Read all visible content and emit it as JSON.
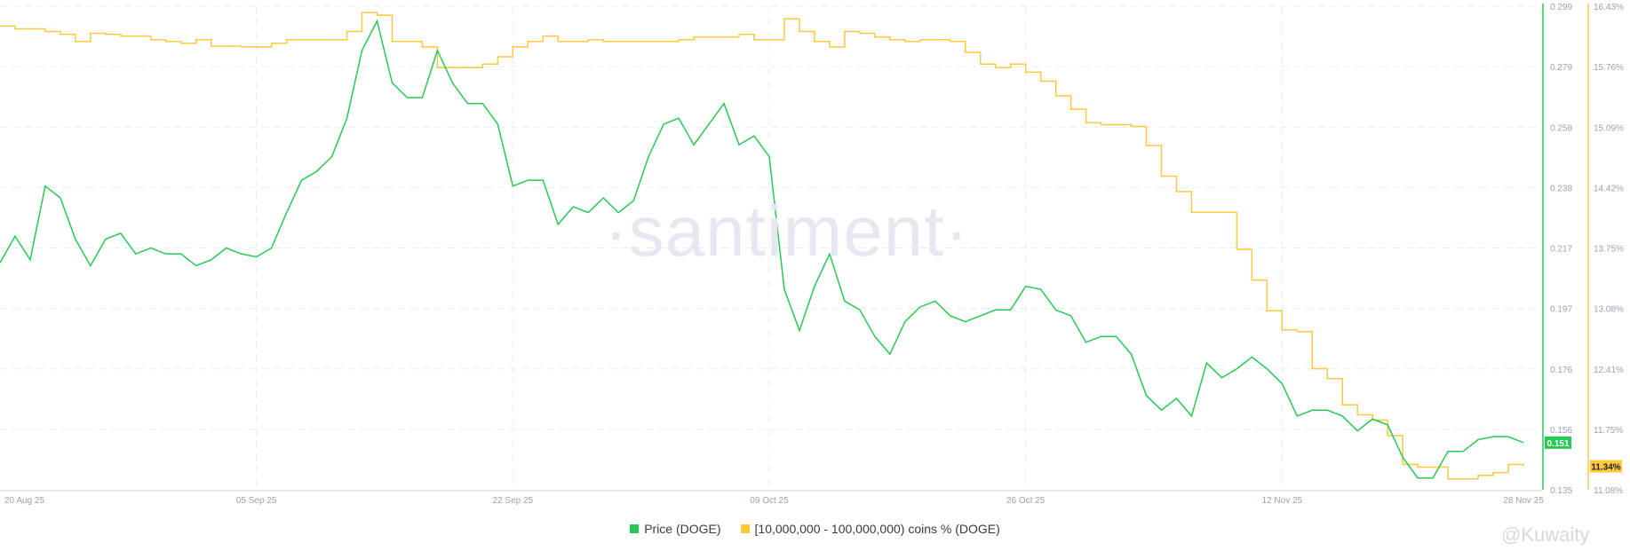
{
  "watermark": "·santiment·",
  "credit": "@Kuwaity",
  "chart_data": {
    "type": "line",
    "x": [
      "2025-08-19",
      "2025-08-20",
      "2025-08-21",
      "2025-08-22",
      "2025-08-23",
      "2025-08-24",
      "2025-08-25",
      "2025-08-26",
      "2025-08-27",
      "2025-08-28",
      "2025-08-29",
      "2025-08-30",
      "2025-08-31",
      "2025-09-01",
      "2025-09-02",
      "2025-09-03",
      "2025-09-04",
      "2025-09-05",
      "2025-09-06",
      "2025-09-07",
      "2025-09-08",
      "2025-09-09",
      "2025-09-10",
      "2025-09-11",
      "2025-09-12",
      "2025-09-13",
      "2025-09-14",
      "2025-09-15",
      "2025-09-16",
      "2025-09-17",
      "2025-09-18",
      "2025-09-19",
      "2025-09-20",
      "2025-09-21",
      "2025-09-22",
      "2025-09-23",
      "2025-09-24",
      "2025-09-25",
      "2025-09-26",
      "2025-09-27",
      "2025-09-28",
      "2025-09-29",
      "2025-09-30",
      "2025-10-01",
      "2025-10-02",
      "2025-10-03",
      "2025-10-04",
      "2025-10-05",
      "2025-10-06",
      "2025-10-07",
      "2025-10-08",
      "2025-10-09",
      "2025-10-10",
      "2025-10-11",
      "2025-10-12",
      "2025-10-13",
      "2025-10-14",
      "2025-10-15",
      "2025-10-16",
      "2025-10-17",
      "2025-10-18",
      "2025-10-19",
      "2025-10-20",
      "2025-10-21",
      "2025-10-22",
      "2025-10-23",
      "2025-10-24",
      "2025-10-25",
      "2025-10-26",
      "2025-10-27",
      "2025-10-28",
      "2025-10-29",
      "2025-10-30",
      "2025-10-31",
      "2025-11-01",
      "2025-11-02",
      "2025-11-03",
      "2025-11-04",
      "2025-11-05",
      "2025-11-06",
      "2025-11-07",
      "2025-11-08",
      "2025-11-09",
      "2025-11-10",
      "2025-11-11",
      "2025-11-12",
      "2025-11-13",
      "2025-11-14",
      "2025-11-15",
      "2025-11-16",
      "2025-11-17",
      "2025-11-18",
      "2025-11-19",
      "2025-11-20",
      "2025-11-21",
      "2025-11-22",
      "2025-11-23",
      "2025-11-24",
      "2025-11-25",
      "2025-11-26",
      "2025-11-27",
      "2025-11-28"
    ],
    "x_ticks": [
      "20 Aug 25",
      "05 Sep 25",
      "22 Sep 25",
      "09 Oct 25",
      "26 Oct 25",
      "12 Nov 25",
      "28 Nov 25"
    ],
    "x_tick_dates": [
      "2025-08-20",
      "2025-09-05",
      "2025-09-22",
      "2025-10-09",
      "2025-10-26",
      "2025-11-12",
      "2025-11-28"
    ],
    "series": [
      {
        "name": "Price (DOGE)",
        "axis": "right-1",
        "color": "#26c953",
        "last_value_label": "0.151",
        "values": [
          0.212,
          0.221,
          0.213,
          0.238,
          0.234,
          0.22,
          0.211,
          0.22,
          0.222,
          0.215,
          0.217,
          0.215,
          0.215,
          0.211,
          0.213,
          0.217,
          0.215,
          0.214,
          0.217,
          0.229,
          0.24,
          0.243,
          0.248,
          0.261,
          0.284,
          0.294,
          0.273,
          0.268,
          0.268,
          0.284,
          0.273,
          0.266,
          0.266,
          0.259,
          0.238,
          0.24,
          0.24,
          0.225,
          0.231,
          0.229,
          0.234,
          0.229,
          0.233,
          0.248,
          0.259,
          0.261,
          0.252,
          0.259,
          0.266,
          0.252,
          0.255,
          0.248,
          0.203,
          0.189,
          0.204,
          0.215,
          0.199,
          0.196,
          0.187,
          0.181,
          0.192,
          0.197,
          0.199,
          0.194,
          0.192,
          0.194,
          0.196,
          0.196,
          0.204,
          0.203,
          0.196,
          0.194,
          0.185,
          0.187,
          0.187,
          0.181,
          0.167,
          0.162,
          0.166,
          0.16,
          0.178,
          0.173,
          0.176,
          0.18,
          0.176,
          0.171,
          0.16,
          0.162,
          0.162,
          0.16,
          0.155,
          0.159,
          0.157,
          0.146,
          0.139,
          0.139,
          0.148,
          0.148,
          0.152,
          0.153,
          0.153,
          0.151
        ]
      },
      {
        "name": "[10,000,000 - 100,000,000) coins % (DOGE)",
        "axis": "right-2",
        "color": "#ffc83d",
        "last_value_label": "11.34%",
        "values": [
          16.21,
          16.18,
          16.18,
          16.15,
          16.12,
          16.04,
          16.13,
          16.12,
          16.1,
          16.1,
          16.06,
          16.04,
          16.02,
          16.06,
          15.99,
          15.99,
          15.98,
          15.98,
          16.02,
          16.06,
          16.06,
          16.06,
          16.06,
          16.15,
          16.36,
          16.33,
          16.04,
          16.04,
          15.98,
          15.75,
          15.75,
          15.75,
          15.79,
          15.87,
          15.98,
          16.04,
          16.1,
          16.04,
          16.04,
          16.06,
          16.04,
          16.04,
          16.04,
          16.04,
          16.04,
          16.06,
          16.09,
          16.09,
          16.09,
          16.12,
          16.06,
          16.06,
          16.29,
          16.15,
          16.04,
          15.98,
          16.15,
          16.13,
          16.09,
          16.06,
          16.04,
          16.06,
          16.06,
          16.04,
          15.92,
          15.79,
          15.75,
          15.79,
          15.7,
          15.6,
          15.44,
          15.29,
          15.14,
          15.12,
          15.12,
          15.1,
          14.89,
          14.55,
          14.38,
          14.15,
          14.15,
          14.15,
          13.74,
          13.4,
          13.06,
          12.85,
          12.83,
          12.42,
          12.31,
          12.02,
          11.91,
          11.85,
          11.68,
          11.36,
          11.33,
          11.33,
          11.2,
          11.2,
          11.24,
          11.27,
          11.36,
          11.34
        ]
      }
    ],
    "y_axes": [
      {
        "id": "right-1",
        "ylim": [
          0.135,
          0.299
        ],
        "ticks": [
          "0.299",
          "0.279",
          "0.258",
          "0.238",
          "0.217",
          "0.197",
          "0.176",
          "0.156",
          "0.135"
        ],
        "color": "#26c953"
      },
      {
        "id": "right-2",
        "ylim": [
          11.08,
          16.43
        ],
        "ticks": [
          "16.43%",
          "15.76%",
          "15.09%",
          "14.42%",
          "13.75%",
          "13.08%",
          "12.41%",
          "11.75%",
          "11.08%"
        ],
        "color": "#ffc83d"
      }
    ],
    "grid": true,
    "legend": "bottom-center"
  }
}
